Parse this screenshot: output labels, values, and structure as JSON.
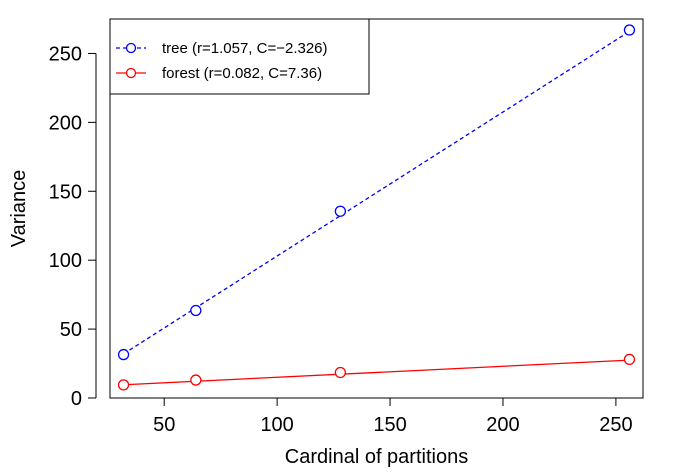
{
  "chart_data": {
    "type": "scatter",
    "xlabel": "Cardinal of partitions",
    "ylabel": "Variance",
    "xlim": [
      26,
      262
    ],
    "ylim": [
      0,
      275
    ],
    "xticks": [
      50,
      100,
      150,
      200,
      250
    ],
    "yticks": [
      0,
      50,
      100,
      150,
      200,
      250
    ],
    "grid": false,
    "legend_position": "top-left",
    "series": [
      {
        "name": "tree (r=1.057, C=−2.326)",
        "color": "#0000ff",
        "line_style": "dashed",
        "marker": "open-circle",
        "points": [
          [
            32,
            31.5
          ],
          [
            64,
            63.5
          ],
          [
            128,
            135.5
          ],
          [
            256,
            267
          ]
        ],
        "fit": [
          [
            32,
            32
          ],
          [
            256,
            266
          ]
        ]
      },
      {
        "name": "forest (r=0.082, C=7.36)",
        "color": "#ff0000",
        "line_style": "solid",
        "marker": "open-circle",
        "points": [
          [
            32,
            9.5
          ],
          [
            64,
            13
          ],
          [
            128,
            18.5
          ],
          [
            256,
            28
          ]
        ],
        "fit": [
          [
            32,
            9.6
          ],
          [
            256,
            27.5
          ]
        ]
      }
    ]
  }
}
